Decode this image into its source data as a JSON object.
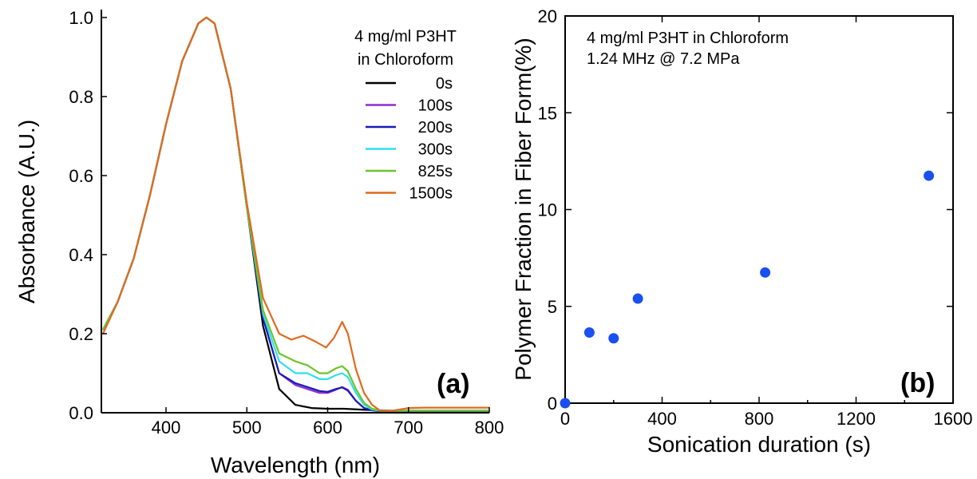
{
  "chart_data": [
    {
      "type": "line",
      "panel_label": "(a)",
      "xlabel": "Wavelength (nm)",
      "ylabel": "Absorbance (A.U.)",
      "xlim": [
        320,
        800
      ],
      "ylim": [
        0,
        1.02
      ],
      "xticks": [
        400,
        500,
        600,
        700,
        800
      ],
      "yticks": [
        0.0,
        0.2,
        0.4,
        0.6,
        0.8,
        1.0
      ],
      "ytick_labels": [
        "0.0",
        "0.2",
        "0.4",
        "0.6",
        "0.8",
        "1.0"
      ],
      "legend_title": [
        "4 mg/ml P3HT",
        "in Chloroform"
      ],
      "legend_position": "top-right",
      "series": [
        {
          "name": "0s",
          "color": "#000000",
          "x": [
            322,
            340,
            360,
            380,
            400,
            420,
            440,
            450,
            460,
            480,
            500,
            520,
            540,
            560,
            580,
            600,
            620,
            640,
            660,
            680,
            700,
            720,
            760,
            800
          ],
          "y": [
            0.21,
            0.28,
            0.39,
            0.55,
            0.73,
            0.89,
            0.985,
            1.0,
            0.985,
            0.82,
            0.52,
            0.22,
            0.06,
            0.02,
            0.012,
            0.01,
            0.01,
            0.008,
            0.006,
            0.005,
            0.005,
            0.005,
            0.005,
            0.005
          ]
        },
        {
          "name": "100s",
          "color": "#8b2fd0",
          "x": [
            322,
            340,
            360,
            380,
            400,
            420,
            440,
            450,
            460,
            480,
            500,
            520,
            540,
            560,
            575,
            590,
            600,
            610,
            618,
            625,
            635,
            645,
            655,
            665,
            680,
            700,
            720,
            760,
            800
          ],
          "y": [
            0.21,
            0.28,
            0.39,
            0.55,
            0.73,
            0.89,
            0.985,
            1.0,
            0.985,
            0.82,
            0.52,
            0.24,
            0.1,
            0.07,
            0.06,
            0.05,
            0.05,
            0.058,
            0.065,
            0.058,
            0.03,
            0.012,
            0.006,
            0.004,
            0.004,
            0.004,
            0.004,
            0.004,
            0.004
          ]
        },
        {
          "name": "200s",
          "color": "#1a1ab8",
          "x": [
            322,
            340,
            360,
            380,
            400,
            420,
            440,
            450,
            460,
            480,
            500,
            520,
            540,
            560,
            575,
            590,
            600,
            610,
            618,
            625,
            635,
            645,
            655,
            665,
            680,
            700,
            720,
            760,
            800
          ],
          "y": [
            0.21,
            0.28,
            0.39,
            0.55,
            0.73,
            0.89,
            0.985,
            1.0,
            0.985,
            0.82,
            0.52,
            0.24,
            0.1,
            0.075,
            0.065,
            0.055,
            0.053,
            0.06,
            0.064,
            0.056,
            0.03,
            0.012,
            0.006,
            0.004,
            0.004,
            0.004,
            0.004,
            0.004,
            0.004
          ]
        },
        {
          "name": "300s",
          "color": "#2fe0ee",
          "x": [
            322,
            340,
            360,
            380,
            400,
            420,
            440,
            450,
            460,
            480,
            500,
            520,
            540,
            560,
            575,
            590,
            600,
            610,
            618,
            625,
            635,
            645,
            655,
            665,
            680,
            700,
            720,
            760,
            800
          ],
          "y": [
            0.21,
            0.28,
            0.39,
            0.55,
            0.73,
            0.89,
            0.985,
            1.0,
            0.985,
            0.82,
            0.52,
            0.25,
            0.13,
            0.1,
            0.1,
            0.085,
            0.085,
            0.095,
            0.1,
            0.09,
            0.05,
            0.02,
            0.008,
            0.005,
            0.005,
            0.005,
            0.005,
            0.005,
            0.005
          ]
        },
        {
          "name": "825s",
          "color": "#6dc42a",
          "x": [
            322,
            340,
            360,
            380,
            400,
            420,
            440,
            450,
            460,
            480,
            500,
            520,
            540,
            560,
            575,
            590,
            600,
            610,
            618,
            625,
            635,
            645,
            655,
            665,
            680,
            700,
            720,
            760,
            800
          ],
          "y": [
            0.21,
            0.28,
            0.39,
            0.55,
            0.73,
            0.89,
            0.985,
            1.0,
            0.985,
            0.82,
            0.52,
            0.26,
            0.15,
            0.13,
            0.12,
            0.1,
            0.1,
            0.112,
            0.118,
            0.105,
            0.06,
            0.025,
            0.01,
            0.005,
            0.005,
            0.005,
            0.005,
            0.005,
            0.005
          ]
        },
        {
          "name": "1500s",
          "color": "#e06a1e",
          "x": [
            322,
            340,
            360,
            380,
            400,
            420,
            440,
            450,
            460,
            480,
            500,
            520,
            540,
            555,
            570,
            585,
            598,
            608,
            618,
            625,
            635,
            645,
            655,
            665,
            680,
            700,
            720,
            760,
            800
          ],
          "y": [
            0.2,
            0.28,
            0.39,
            0.55,
            0.73,
            0.89,
            0.985,
            1.0,
            0.985,
            0.82,
            0.53,
            0.29,
            0.2,
            0.185,
            0.195,
            0.18,
            0.165,
            0.19,
            0.23,
            0.2,
            0.11,
            0.05,
            0.02,
            0.005,
            0.005,
            0.012,
            0.013,
            0.013,
            0.013
          ]
        }
      ]
    },
    {
      "type": "scatter",
      "panel_label": "(b)",
      "xlabel": "Sonication duration (s)",
      "ylabel": "Polymer Fraction in Fiber Form(%)",
      "xlim": [
        0,
        1600
      ],
      "ylim": [
        0,
        20
      ],
      "xticks": [
        0,
        400,
        800,
        1200,
        1600
      ],
      "yticks": [
        0,
        5,
        10,
        15,
        20
      ],
      "annotation": [
        "4 mg/ml P3HT in Chloroform",
        "1.24 MHz @ 7.2 MPa"
      ],
      "marker_color": "#1a4ff0",
      "series": [
        {
          "x": [
            0,
            100,
            200,
            300,
            825,
            1500
          ],
          "y": [
            0.0,
            3.65,
            3.35,
            5.4,
            6.75,
            11.75
          ]
        }
      ]
    }
  ]
}
